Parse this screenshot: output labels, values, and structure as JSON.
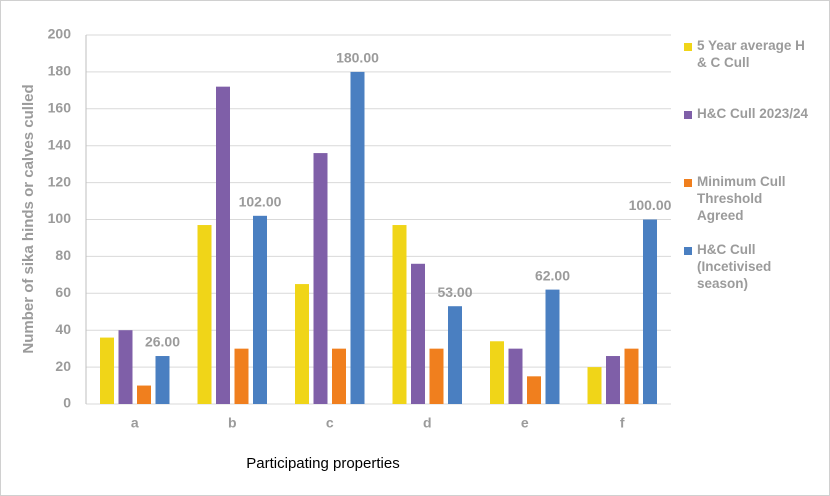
{
  "chart_data": {
    "type": "bar",
    "x_label": "Participating properties",
    "y_label": "Number of sika hinds or calves culled",
    "categories": [
      "a",
      "b",
      "c",
      "d",
      "e",
      "f"
    ],
    "series": [
      {
        "name": "5 Year average H & C Cull",
        "color": "#f0d518",
        "values": [
          36,
          97,
          65,
          97,
          34,
          20
        ]
      },
      {
        "name": "H&C Cull 2023/24",
        "color": "#7f5fa8",
        "values": [
          40,
          172,
          136,
          76,
          30,
          26
        ]
      },
      {
        "name": "Minimum Cull Threshold Agreed",
        "color": "#f07f1e",
        "values": [
          10,
          30,
          30,
          30,
          15,
          30
        ]
      },
      {
        "name": "H&C Cull (Incetivised season)",
        "color": "#4a7fc1",
        "values": [
          26,
          102,
          180,
          53,
          62,
          100
        ],
        "value_labels": [
          "26.00",
          "102.00",
          "180.00",
          "53.00",
          "62.00",
          "100.00"
        ]
      }
    ],
    "ylim": [
      0,
      200
    ],
    "yticks": [
      0,
      20,
      40,
      60,
      80,
      100,
      120,
      140,
      160,
      180,
      200
    ],
    "grid": true,
    "legend": "right"
  }
}
